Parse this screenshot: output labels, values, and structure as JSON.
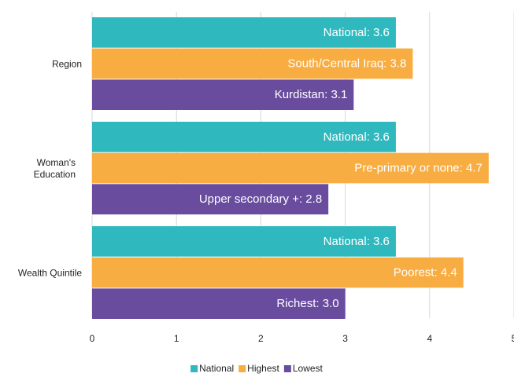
{
  "chart_data": {
    "type": "bar",
    "orientation": "horizontal",
    "categories": [
      "Region",
      "Woman's Education",
      "Wealth Quintile"
    ],
    "series": [
      {
        "name": "National",
        "color": "#2fb9be",
        "values": [
          3.6,
          3.6,
          3.6
        ],
        "value_labels": [
          "National: 3.6",
          "National: 3.6",
          "National: 3.6"
        ]
      },
      {
        "name": "Highest",
        "color": "#f8ad42",
        "values": [
          3.8,
          4.7,
          4.4
        ],
        "value_labels": [
          "South/Central Iraq: 3.8",
          "Pre-primary or none: 4.7",
          "Poorest: 4.4"
        ]
      },
      {
        "name": "Lowest",
        "color": "#6a4c9f",
        "values": [
          3.1,
          2.8,
          3.0
        ],
        "value_labels": [
          "Kurdistan: 3.1",
          "Upper secondary +: 2.8",
          "Richest: 3.0"
        ]
      }
    ],
    "xlim": [
      0,
      5
    ],
    "xticks": [
      0,
      1,
      2,
      3,
      4,
      5
    ],
    "grid": true,
    "legend": "bottom"
  }
}
